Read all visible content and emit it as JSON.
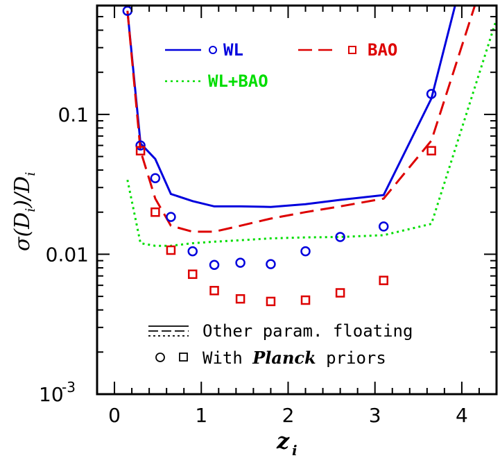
{
  "chart_data": {
    "type": "line",
    "xlabel": "z",
    "xlabel_sub": "i",
    "ylabel": "σ(D",
    "ylabel_sub": "i",
    "ylabel_mid": ")/D",
    "ylabel_sub2": "i",
    "yscale": "log",
    "xlim": [
      -0.2,
      4.4
    ],
    "ylim": [
      0.001,
      0.6
    ],
    "xticks": [
      0,
      1,
      2,
      3,
      4
    ],
    "xtick_labels": [
      "0",
      "1",
      "2",
      "3",
      "4"
    ],
    "ytick_major": [
      0.001,
      0.01,
      0.1
    ],
    "ytick_labels": {
      "main": [
        "0.01",
        "0.1"
      ],
      "exp_base": "10",
      "exp_power": "-3"
    },
    "series": [
      {
        "name": "WL",
        "style": "solid",
        "color": "#0000dd",
        "x": [
          0.15,
          0.3,
          0.47,
          0.65,
          0.9,
          1.15,
          1.45,
          1.8,
          2.2,
          2.6,
          3.1,
          3.65,
          3.95
        ],
        "y": [
          0.55,
          0.062,
          0.048,
          0.027,
          0.024,
          0.022,
          0.022,
          0.0218,
          0.0228,
          0.0245,
          0.0265,
          0.13,
          0.7
        ]
      },
      {
        "name": "BAO",
        "style": "dashed",
        "color": "#dd0000",
        "x": [
          0.15,
          0.3,
          0.47,
          0.65,
          0.9,
          1.15,
          1.45,
          1.8,
          2.2,
          2.6,
          3.1,
          3.65,
          4.2
        ],
        "y": [
          0.55,
          0.055,
          0.025,
          0.016,
          0.0145,
          0.0145,
          0.016,
          0.018,
          0.02,
          0.022,
          0.025,
          0.065,
          0.75
        ]
      },
      {
        "name": "WL+BAO",
        "style": "dotted",
        "color": "#00dd00",
        "x": [
          0.15,
          0.3,
          0.47,
          0.65,
          0.9,
          1.15,
          1.45,
          1.8,
          2.2,
          2.6,
          3.1,
          3.65,
          4.4
        ],
        "y": [
          0.034,
          0.012,
          0.0115,
          0.0115,
          0.012,
          0.0123,
          0.0126,
          0.013,
          0.0132,
          0.0133,
          0.0137,
          0.0165,
          0.48
        ]
      }
    ],
    "markers": [
      {
        "name": "WL",
        "shape": "circle",
        "color": "#0000dd",
        "x": [
          0.15,
          0.3,
          0.47,
          0.65,
          0.9,
          1.15,
          1.45,
          1.8,
          2.2,
          2.6,
          3.1,
          3.65
        ],
        "y": [
          0.55,
          0.06,
          0.035,
          0.0185,
          0.0105,
          0.0084,
          0.0087,
          0.0085,
          0.0105,
          0.0133,
          0.0158,
          0.14
        ]
      },
      {
        "name": "BAO",
        "shape": "square",
        "color": "#dd0000",
        "x": [
          0.3,
          0.47,
          0.65,
          0.9,
          1.15,
          1.45,
          1.8,
          2.2,
          2.6,
          3.1,
          3.65
        ],
        "y": [
          0.055,
          0.02,
          0.0107,
          0.0072,
          0.0055,
          0.0048,
          0.0046,
          0.0047,
          0.0053,
          0.0065,
          0.055
        ]
      }
    ],
    "legend": {
      "wl": "WL",
      "bao": "BAO",
      "wlbao": "WL+BAO",
      "other_floating": "Other param. floating",
      "planck_pre": "With",
      "planck_italic": "Planck",
      "planck_post": "priors",
      "placement": "top and bottom-left inside plot"
    }
  }
}
